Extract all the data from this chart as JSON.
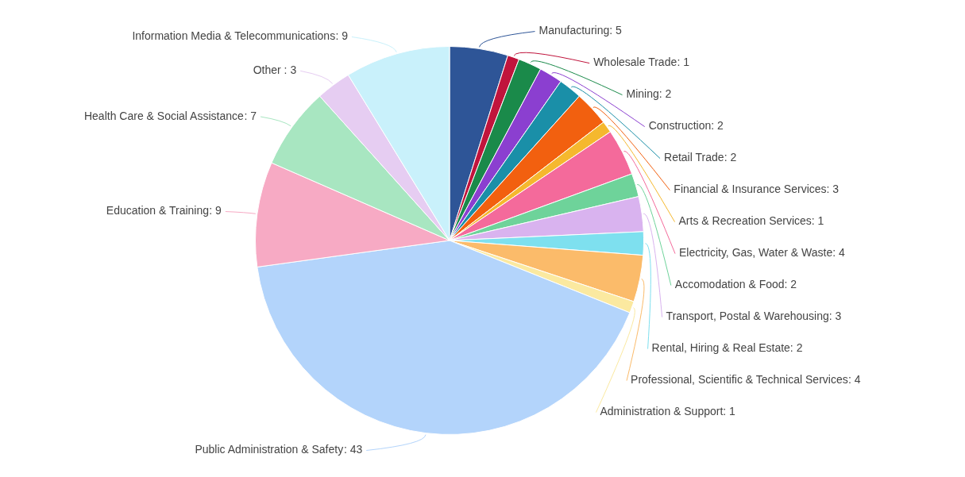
{
  "chart_data": {
    "type": "pie",
    "categories": [
      "Manufacturing",
      "Wholesale Trade",
      "Mining",
      "Construction",
      "Retail Trade",
      "Financial & Insurance Services",
      "Arts & Recreation Services",
      "Electricity, Gas, Water & Waste",
      "Accomodation & Food",
      "Transport, Postal & Warehousing",
      "Rental, Hiring & Real Estate",
      "Professional, Scientific & Technical Services",
      "Administration & Support",
      "Public Administration & Safety",
      "Education & Training",
      "Health Care & Social Assistance",
      "Other",
      "Information Media & Telecommunications"
    ],
    "values": [
      5,
      1,
      2,
      2,
      2,
      3,
      1,
      4,
      2,
      3,
      2,
      4,
      1,
      43,
      9,
      7,
      3,
      9
    ],
    "value_labels": [
      ": 5",
      ": 1",
      ": 2",
      ": 2",
      ": 2",
      ": 3",
      ": 1",
      ": 4",
      ": 2",
      ": 3",
      ": 2",
      ": 4",
      ": 1",
      ": 43",
      ": 9",
      ": 7",
      " : 3",
      ": 9"
    ],
    "colors": [
      "#2e5597",
      "#c0143c",
      "#1a8a4a",
      "#8b3fd0",
      "#1a8fa8",
      "#f2600f",
      "#f5b82e",
      "#f46a9b",
      "#6ed39a",
      "#d9b3ef",
      "#7ee0ef",
      "#fbbb6a",
      "#fbe9a0",
      "#b3d4fb",
      "#f7aac4",
      "#a8e6c1",
      "#e6cdf2",
      "#c9f1fb"
    ],
    "legend": false
  }
}
